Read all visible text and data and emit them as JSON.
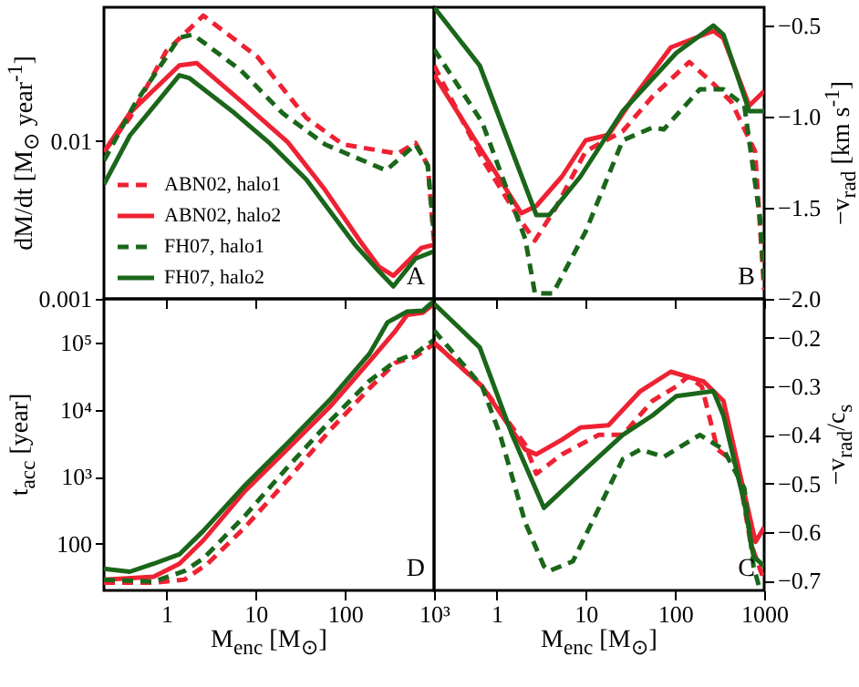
{
  "chart_data": [
    {
      "type": "line",
      "ylabel": "dM/dt [M$_{⊙}$ year$^{-1}$]",
      "annotations": [
        "A"
      ],
      "log": "xy",
      "xlim": [
        0.2,
        1000
      ],
      "ylim": [
        0.001,
        0.07
      ],
      "xticks": [
        1,
        10,
        100,
        1000
      ],
      "yticks": [
        0.001,
        0.01
      ],
      "tick_labels": "y",
      "legend": "bottom left",
      "series": [
        {
          "name": "ABN02, halo1",
          "color": "#ee2233",
          "line_style": "dashed",
          "x": [
            0.2,
            0.39,
            1,
            2.6,
            10.5,
            37,
            95,
            390,
            620,
            850,
            1000
          ],
          "values": [
            0.0085,
            0.014,
            0.037,
            0.062,
            0.034,
            0.014,
            0.0095,
            0.0083,
            0.0097,
            0.007,
            0.0023
          ]
        },
        {
          "name": "ABN02, halo2",
          "color": "#ee2233",
          "line_style": "solid",
          "x": [
            0.2,
            0.39,
            1.4,
            2.2,
            7.6,
            23,
            60,
            150,
            240,
            350,
            720,
            1000
          ],
          "values": [
            0.0085,
            0.015,
            0.03,
            0.031,
            0.017,
            0.0098,
            0.0049,
            0.0023,
            0.0016,
            0.0014,
            0.0021,
            0.0022
          ]
        },
        {
          "name": "FH07, halo1",
          "color": "#1a661a",
          "line_style": "dashed",
          "x": [
            0.2,
            0.44,
            1.4,
            2,
            6.8,
            20,
            60,
            160,
            290,
            620,
            850,
            1000
          ],
          "values": [
            0.0075,
            0.017,
            0.045,
            0.047,
            0.028,
            0.015,
            0.0095,
            0.0075,
            0.0065,
            0.0095,
            0.007,
            0.0025
          ]
        },
        {
          "name": "FH07, halo2",
          "color": "#1a661a",
          "line_style": "solid",
          "x": [
            0.2,
            0.39,
            1.4,
            1.8,
            5.8,
            14,
            37,
            130,
            240,
            350,
            620,
            1000
          ],
          "values": [
            0.0053,
            0.0108,
            0.026,
            0.025,
            0.015,
            0.0098,
            0.0057,
            0.0022,
            0.0015,
            0.0012,
            0.0018,
            0.002
          ]
        }
      ]
    },
    {
      "type": "line",
      "y2label": "−v$_{rad}$ [km s$^{-1}$]",
      "annotations": [
        "B"
      ],
      "log": "x",
      "xlim": [
        0.2,
        1000
      ],
      "y2lim": [
        -2.0,
        -0.4
      ],
      "xticks": [
        1,
        10,
        100,
        1000
      ],
      "y2ticks": [
        {
          "value": -2.0,
          "label": "−2.0"
        },
        {
          "value": -1.5,
          "label": "−1.5"
        },
        {
          "value": -1.0,
          "label": "−1.0"
        },
        {
          "value": -0.5,
          "label": "−0.5"
        }
      ],
      "tick_labels": "y",
      "series": [
        {
          "color": "#ee2233",
          "line_style": "dashed",
          "axis": "y2",
          "x": [
            0.2,
            0.69,
            1.8,
            2.7,
            4.5,
            10,
            26,
            56,
            145,
            270,
            430,
            790,
            1000
          ],
          "values": [
            -0.72,
            -1.23,
            -1.56,
            -1.68,
            -1.51,
            -1.19,
            -1.08,
            -0.89,
            -0.7,
            -0.82,
            -0.92,
            -1.19,
            -1.95
          ]
        },
        {
          "color": "#ee2233",
          "line_style": "solid",
          "axis": "y2",
          "x": [
            0.2,
            0.69,
            1.9,
            2.8,
            5.4,
            10,
            18,
            35,
            90,
            270,
            350,
            680,
            1000
          ],
          "values": [
            -0.77,
            -1.19,
            -1.53,
            -1.49,
            -1.33,
            -1.13,
            -1.1,
            -0.89,
            -0.62,
            -0.53,
            -0.57,
            -0.94,
            -0.86
          ]
        },
        {
          "color": "#1a661a",
          "line_style": "dashed",
          "axis": "y2",
          "x": [
            0.2,
            0.69,
            2.1,
            2.7,
            4.3,
            10,
            26,
            56,
            75,
            190,
            350,
            600,
            900,
            1000
          ],
          "values": [
            -0.63,
            -1.03,
            -1.67,
            -1.97,
            -1.97,
            -1.63,
            -1.13,
            -1.06,
            -1.07,
            -0.85,
            -0.85,
            -0.94,
            -1.56,
            -1.9
          ]
        },
        {
          "color": "#1a661a",
          "line_style": "solid",
          "axis": "y2",
          "x": [
            0.2,
            0.65,
            2.8,
            3.9,
            8.7,
            26,
            104,
            270,
            350,
            680,
            1000
          ],
          "values": [
            -0.4,
            -0.72,
            -1.54,
            -1.54,
            -1.33,
            -0.97,
            -0.65,
            -0.5,
            -0.55,
            -0.97,
            -0.97
          ]
        }
      ]
    },
    {
      "type": "line",
      "xlabel": "M$_{enc}$ [M$_{⊙}$]",
      "ylabel": "t$_{acc}$ [year]",
      "annotations": [
        "D"
      ],
      "log": "xy",
      "xlim": [
        0.2,
        1000
      ],
      "ylim": [
        20,
        450000
      ],
      "xticks": [
        1,
        10,
        100,
        {
          "value": 1000,
          "label": "10³"
        }
      ],
      "yticks": [
        100,
        {
          "value": 1000,
          "label": "10³"
        },
        {
          "value": 10000,
          "label": "10⁴"
        },
        {
          "value": 100000,
          "label": "10⁵"
        }
      ],
      "series": [
        {
          "color": "#ee2233",
          "line_style": "dashed",
          "x": [
            0.2,
            0.72,
            1.6,
            2.9,
            7.6,
            23,
            68,
            190,
            370,
            620,
            1000
          ],
          "values": [
            26,
            26,
            29,
            50,
            175,
            900,
            4900,
            21000,
            50000,
            62000,
            96000
          ]
        },
        {
          "color": "#ee2233",
          "line_style": "solid",
          "x": [
            0.2,
            0.72,
            1.4,
            2.6,
            7.6,
            23,
            68,
            190,
            370,
            500,
            750,
            1000
          ],
          "values": [
            29,
            32,
            50,
            112,
            610,
            2600,
            11000,
            53000,
            150000,
            260000,
            280000,
            380000
          ]
        },
        {
          "color": "#1a661a",
          "line_style": "dashed",
          "x": [
            0.2,
            0.72,
            1.6,
            2.6,
            7.6,
            23,
            68,
            190,
            370,
            620,
            1000
          ],
          "values": [
            29,
            27,
            39,
            60,
            260,
            1400,
            6700,
            27000,
            53000,
            69000,
            110000
          ]
        },
        {
          "color": "#1a661a",
          "line_style": "solid",
          "x": [
            0.2,
            0.39,
            0.72,
            1.4,
            2.6,
            7.6,
            23,
            68,
            190,
            300,
            500,
            750,
            1000
          ],
          "values": [
            42,
            38,
            50,
            69,
            155,
            740,
            3200,
            14000,
            69000,
            200000,
            290000,
            300000,
            420000
          ]
        }
      ]
    },
    {
      "type": "line",
      "xlabel": "M$_{enc}$ [M$_{⊙}$]",
      "y2label": "−v$_{rad}$/c$_{s}$",
      "annotations": [
        "C"
      ],
      "log": "x",
      "xlim": [
        0.2,
        1000
      ],
      "y2lim": [
        -0.72,
        -0.12
      ],
      "xticks": [
        1,
        10,
        100,
        1000
      ],
      "y2ticks": [
        {
          "value": -0.7,
          "label": "−0.7"
        },
        {
          "value": -0.6,
          "label": "−0.6"
        },
        {
          "value": -0.5,
          "label": "−0.5"
        },
        {
          "value": -0.4,
          "label": "−0.4"
        },
        {
          "value": -0.3,
          "label": "−0.3"
        },
        {
          "value": -0.2,
          "label": "−0.2"
        }
      ],
      "series": [
        {
          "color": "#ee2233",
          "line_style": "dashed",
          "axis": "y2",
          "x": [
            0.2,
            0.69,
            2.1,
            2.8,
            5.4,
            14,
            26,
            56,
            104,
            140,
            200,
            300,
            500,
            700,
            1000
          ],
          "values": [
            -0.21,
            -0.3,
            -0.42,
            -0.48,
            -0.44,
            -0.4,
            -0.4,
            -0.33,
            -0.3,
            -0.28,
            -0.3,
            -0.43,
            -0.46,
            -0.62,
            -0.7
          ]
        },
        {
          "color": "#ee2233",
          "line_style": "solid",
          "axis": "y2",
          "x": [
            0.2,
            0.69,
            2.1,
            2.8,
            5.4,
            8.7,
            18,
            41,
            90,
            210,
            350,
            600,
            800,
            1000
          ],
          "values": [
            -0.21,
            -0.3,
            -0.43,
            -0.44,
            -0.41,
            -0.385,
            -0.38,
            -0.31,
            -0.27,
            -0.29,
            -0.33,
            -0.52,
            -0.62,
            -0.59
          ]
        },
        {
          "color": "#1a661a",
          "line_style": "dashed",
          "axis": "y2",
          "x": [
            0.2,
            0.69,
            1.1,
            2.1,
            3.4,
            3.9,
            7.2,
            15,
            26,
            41,
            75,
            190,
            350,
            600,
            760,
            900
          ],
          "values": [
            -0.185,
            -0.3,
            -0.4,
            -0.58,
            -0.67,
            -0.68,
            -0.66,
            -0.54,
            -0.45,
            -0.43,
            -0.445,
            -0.4,
            -0.43,
            -0.51,
            -0.67,
            -0.72
          ]
        },
        {
          "color": "#1a661a",
          "line_style": "solid",
          "axis": "y2",
          "x": [
            0.2,
            0.65,
            1.5,
            3.4,
            8.7,
            26,
            56,
            104,
            270,
            350,
            600,
            760,
            1000
          ],
          "values": [
            -0.13,
            -0.22,
            -0.4,
            -0.55,
            -0.48,
            -0.4,
            -0.36,
            -0.32,
            -0.31,
            -0.36,
            -0.54,
            -0.65,
            -0.67
          ]
        }
      ]
    }
  ]
}
